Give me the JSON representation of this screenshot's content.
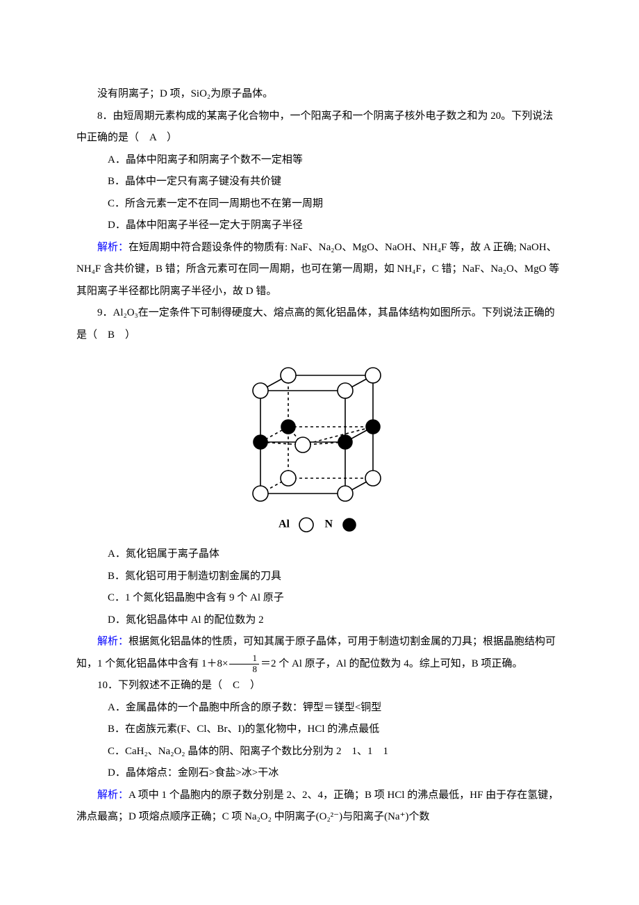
{
  "lines": {
    "l1": "没有阴离子；D 项，SiO₂为原子晶体。",
    "l2": "8．由短周期元素构成的某离子化合物中，一个阳离子和一个阴离子核外电子数之和为 20。下列说法中正确的是（　A　）",
    "l3": "A．晶体中阳离子和阴离子个数不一定相等",
    "l4": "B．晶体中一定只有离子键没有共价键",
    "l5": "C．所含元素一定不在同一周期也不在第一周期",
    "l6": "D．晶体中阳离子半径一定大于阴离子半径",
    "l7a": "解析：",
    "l7b": "在短周期中符合题设条件的物质有: NaF、Na₂O、MgO、NaOH、NH₄F 等，故 A 正确; NaOH、NH₄F 含共价键，B 错；所含元素可在同一周期，也可在第一周期，如 NH₄F，C 错；NaF、Na₂O、MgO 等其阳离子半径都比阴离子半径小，故 D 错。",
    "l8": "9．Al₂O₃在一定条件下可制得硬度大、熔点高的氮化铝晶体，其晶体结构如图所示。下列说法正确的是（　B　）",
    "l9": "A．氮化铝属于离子晶体",
    "l10": "B．氮化铝可用于制造切割金属的刀具",
    "l11": "C．1 个氮化铝晶胞中含有 9 个 Al 原子",
    "l12": "D．氮化铝晶体中 Al 的配位数为 2",
    "l13a": "解析：",
    "l13b": "根据氮化铝晶体的性质，可知其属于原子晶体，可用于制造切割金属的刀具；根据晶胞结构可知，1 个氮化铝晶体中含有 1＋8×",
    "l13c": "＝2 个 Al 原子，Al 的配位数为 4。综上可知，B 项正确。",
    "l14": "10．下列叙述不正确的是（　C　）",
    "l15": "A．金属晶体的一个晶胞中所含的原子数：钾型＝镁型<铜型",
    "l16": "B．在卤族元素(F、Cl、Br、I)的氢化物中，HCl 的沸点最低",
    "l17": "C．CaH₂、Na₂O₂ 晶体的阴、阳离子个数比分别为 2　1、1　1",
    "l18": "D．晶体熔点：金刚石>食盐>冰>干冰",
    "l19a": "解析：",
    "l19b": "A 项中 1 个晶胞内的原子数分别是 2、2、4，正确；B 项 HCl 的沸点最低，HF 由于存在氢键，沸点最高；D 项熔点顺序正确；C 项 Na₂O₂ 中阴离子(O₂²⁻)与阳离子(Na⁺)个数"
  },
  "legend": {
    "al": "Al",
    "n": "N"
  },
  "frac": {
    "num": "1",
    "den": "8"
  },
  "diagram": {
    "stroke": "#000000",
    "strokeWidth": 1.6,
    "dashPattern": "4,4",
    "openFill": "#ffffff",
    "solidFill": "#000000",
    "openRadius": 11,
    "solidRadius": 10,
    "frontTop": [
      [
        30,
        52
      ],
      [
        152,
        52
      ]
    ],
    "frontBottom": [
      [
        30,
        200
      ],
      [
        152,
        200
      ]
    ],
    "backTop": [
      [
        70,
        30
      ],
      [
        192,
        30
      ]
    ],
    "backBottom": [
      [
        70,
        178
      ],
      [
        192,
        178
      ]
    ],
    "midFront": [
      [
        30,
        126
      ],
      [
        152,
        126
      ]
    ],
    "midBack": [
      [
        70,
        104
      ],
      [
        192,
        104
      ]
    ],
    "centerOpen": [
      91,
      130
    ],
    "legendOpenPos": [
      96,
      245
    ],
    "legendSolidPos": [
      158,
      245
    ]
  }
}
